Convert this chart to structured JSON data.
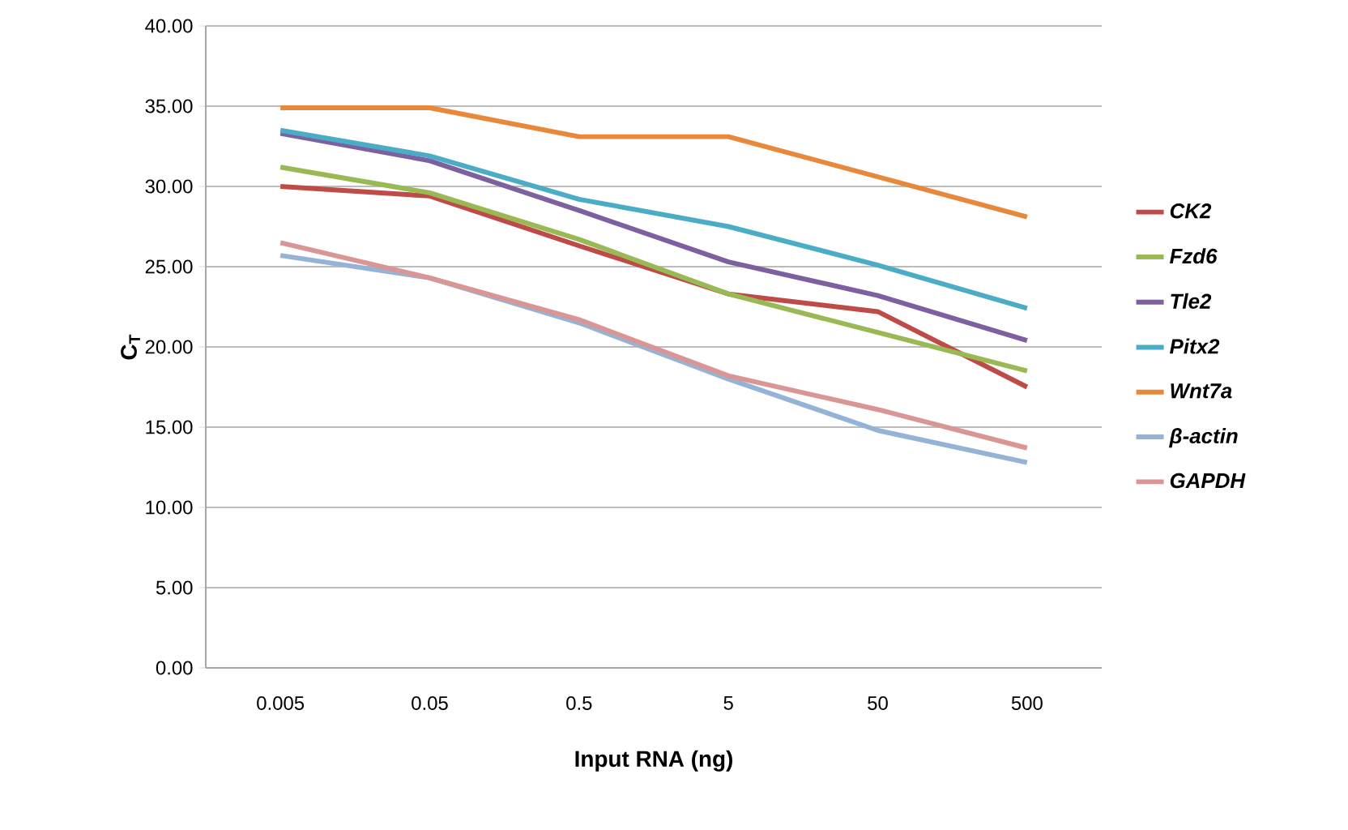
{
  "chart_data": {
    "type": "line",
    "xlabel": "Input RNA (ng)",
    "ylabel": "C$_{T}$",
    "categories": [
      "0.005",
      "0.05",
      "0.5",
      "5",
      "50",
      "500"
    ],
    "ylim": [
      0,
      40
    ],
    "yticks": [
      {
        "value": 0,
        "label": "0.00"
      },
      {
        "value": 5,
        "label": "5.00"
      },
      {
        "value": 10,
        "label": "10.00"
      },
      {
        "value": 15,
        "label": "15.00"
      },
      {
        "value": 20,
        "label": "20.00"
      },
      {
        "value": 25,
        "label": "25.00"
      },
      {
        "value": 30,
        "label": "30.00"
      },
      {
        "value": 35,
        "label": "35.00"
      },
      {
        "value": 40,
        "label": "40.00"
      }
    ],
    "grid": "y",
    "legend": "right",
    "marker": "none",
    "line_style": "solid",
    "series": [
      {
        "name": "CK2",
        "color": "#be4b48",
        "values": [
          30.0,
          29.4,
          26.3,
          23.3,
          22.2,
          17.5
        ]
      },
      {
        "name": "Fzd6",
        "color": "#98b954",
        "values": [
          31.2,
          29.6,
          26.7,
          23.3,
          20.9,
          18.5
        ]
      },
      {
        "name": "Tle2",
        "color": "#7d60a0",
        "values": [
          33.3,
          31.6,
          28.5,
          25.3,
          23.2,
          20.4
        ]
      },
      {
        "name": "Pitx2",
        "color": "#4bacc6",
        "values": [
          33.5,
          31.9,
          29.2,
          27.5,
          25.1,
          22.4
        ]
      },
      {
        "name": "Wnt7a",
        "color": "#e8883a",
        "values": [
          34.9,
          34.9,
          33.1,
          33.1,
          30.6,
          28.1
        ]
      },
      {
        "name": "β-actin",
        "color": "#95b3d7",
        "values": [
          25.7,
          24.3,
          21.5,
          18.0,
          14.8,
          12.8
        ]
      },
      {
        "name": "GAPDH",
        "color": "#d99694",
        "values": [
          26.5,
          24.3,
          21.7,
          18.2,
          16.1,
          13.7
        ]
      }
    ]
  }
}
